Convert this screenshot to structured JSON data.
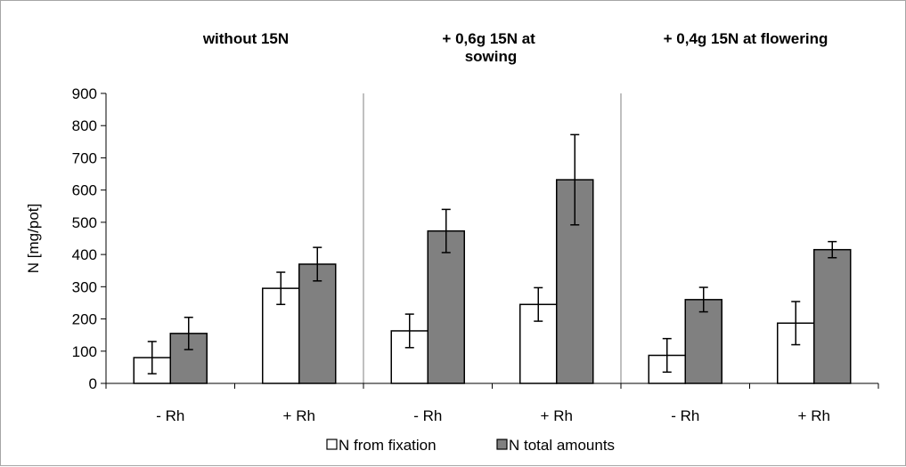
{
  "chart_data": {
    "type": "bar",
    "title": "",
    "xlabel": "",
    "ylabel": "N [mg/pot]",
    "ylim": [
      0,
      900
    ],
    "yticks": [
      "0",
      "100",
      "200",
      "300",
      "400",
      "500",
      "600",
      "700",
      "800",
      "900"
    ],
    "grid": false,
    "legend_position": "bottom",
    "groups": [
      "without 15N",
      "+ 0,6g 15N at sowing",
      "+ 0,4g 15N at flowering"
    ],
    "categories": [
      "- Rh",
      "+ Rh",
      "- Rh",
      "+ Rh",
      "- Rh",
      "+ Rh"
    ],
    "series": [
      {
        "name": "N from fixation",
        "color": "#ffffff",
        "values": [
          80,
          295,
          163,
          245,
          87,
          187
        ],
        "errors": [
          50,
          50,
          52,
          52,
          52,
          67
        ]
      },
      {
        "name": "N total amounts",
        "color": "#808080",
        "values": [
          155,
          370,
          473,
          632,
          260,
          415
        ],
        "errors": [
          50,
          52,
          67,
          140,
          38,
          25
        ]
      }
    ]
  }
}
